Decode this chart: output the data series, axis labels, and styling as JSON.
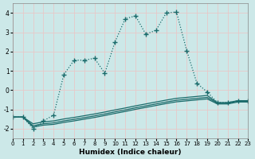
{
  "xlabel": "Humidex (Indice chaleur)",
  "background_color": "#cce8e8",
  "grid_color": "#e8c8c8",
  "line_color": "#1a6b6b",
  "xlim": [
    0,
    23
  ],
  "ylim": [
    -2.5,
    4.5
  ],
  "yticks": [
    -2,
    -1,
    0,
    1,
    2,
    3,
    4
  ],
  "xticks": [
    0,
    1,
    2,
    3,
    4,
    5,
    6,
    7,
    8,
    9,
    10,
    11,
    12,
    13,
    14,
    15,
    16,
    17,
    18,
    19,
    20,
    21,
    22,
    23
  ],
  "main_x": [
    0,
    1,
    2,
    3,
    4,
    5,
    6,
    7,
    8,
    9,
    10,
    11,
    12,
    13,
    14,
    15,
    16,
    17,
    18,
    19,
    20,
    21,
    22,
    23
  ],
  "main_y": [
    -1.4,
    -1.4,
    -2.0,
    -1.6,
    -1.3,
    0.8,
    1.55,
    1.55,
    1.65,
    0.87,
    2.5,
    3.7,
    3.85,
    2.9,
    3.1,
    4.0,
    4.05,
    2.05,
    0.35,
    -0.1,
    -0.65,
    -0.65,
    -0.55,
    -0.55
  ],
  "flat1_x": [
    0,
    1,
    2,
    3,
    4,
    5,
    6,
    7,
    8,
    9,
    10,
    11,
    12,
    13,
    14,
    15,
    16,
    17,
    18,
    19,
    20,
    21,
    22,
    23
  ],
  "flat1_y": [
    -1.4,
    -1.4,
    -1.75,
    -1.65,
    -1.6,
    -1.5,
    -1.42,
    -1.33,
    -1.24,
    -1.14,
    -1.03,
    -0.93,
    -0.82,
    -0.72,
    -0.62,
    -0.52,
    -0.43,
    -0.38,
    -0.33,
    -0.28,
    -0.65,
    -0.65,
    -0.55,
    -0.55
  ],
  "flat2_x": [
    0,
    1,
    2,
    3,
    4,
    5,
    6,
    7,
    8,
    9,
    10,
    11,
    12,
    13,
    14,
    15,
    16,
    17,
    18,
    19,
    20,
    21,
    22,
    23
  ],
  "flat2_y": [
    -1.4,
    -1.4,
    -1.85,
    -1.75,
    -1.7,
    -1.6,
    -1.52,
    -1.43,
    -1.34,
    -1.24,
    -1.13,
    -1.03,
    -0.92,
    -0.82,
    -0.72,
    -0.62,
    -0.53,
    -0.48,
    -0.43,
    -0.38,
    -0.68,
    -0.68,
    -0.58,
    -0.58
  ],
  "flat3_x": [
    0,
    1,
    2,
    3,
    4,
    5,
    6,
    7,
    8,
    9,
    10,
    11,
    12,
    13,
    14,
    15,
    16,
    17,
    18,
    19,
    20,
    21,
    22,
    23
  ],
  "flat3_y": [
    -1.4,
    -1.4,
    -1.92,
    -1.82,
    -1.78,
    -1.68,
    -1.6,
    -1.51,
    -1.42,
    -1.32,
    -1.21,
    -1.11,
    -1.0,
    -0.9,
    -0.8,
    -0.7,
    -0.61,
    -0.56,
    -0.51,
    -0.46,
    -0.72,
    -0.72,
    -0.62,
    -0.62
  ]
}
